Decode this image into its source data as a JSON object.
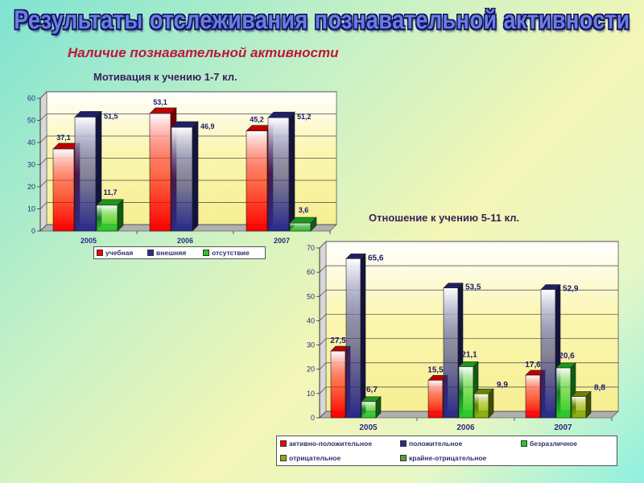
{
  "title": "Результаты отслеживания познавательной активности",
  "subtitle": "Наличие познавательной активности",
  "chart_data": [
    {
      "type": "bar",
      "title": "Мотивация к учению 1-7 кл.",
      "categories": [
        "2005",
        "2006",
        "2007"
      ],
      "series": [
        {
          "name": "учебная",
          "values": [
            37.1,
            53.1,
            45.2
          ],
          "labels": [
            "37,1",
            "53,1",
            "45,2"
          ],
          "color": "#ff0000"
        },
        {
          "name": "внешняя",
          "values": [
            51.5,
            46.9,
            51.2
          ],
          "labels": [
            "51,5",
            "46,9",
            "51,2"
          ],
          "color": "#2a2a8a"
        },
        {
          "name": "отсутствие",
          "values": [
            11.7,
            0,
            3.6
          ],
          "labels": [
            "11,7",
            "",
            "3,6"
          ],
          "color": "#22cc22"
        }
      ],
      "ylim": [
        0,
        60
      ],
      "yticks": [
        "0",
        "10",
        "20",
        "30",
        "40",
        "50",
        "60"
      ],
      "grid": true,
      "legend": "bottom"
    },
    {
      "type": "bar",
      "title": "Отношение к учению 5-11 кл.",
      "categories": [
        "2005",
        "2006",
        "2007"
      ],
      "series": [
        {
          "name": "активно-положительное",
          "values": [
            27.5,
            15.5,
            17.6
          ],
          "labels": [
            "27,5",
            "15,5",
            "17,6"
          ],
          "color": "#ff0000"
        },
        {
          "name": "положительное",
          "values": [
            65.6,
            53.5,
            52.9
          ],
          "labels": [
            "65,6",
            "53,5",
            "52,9"
          ],
          "color": "#2a2a8a"
        },
        {
          "name": "безразличное",
          "values": [
            6.7,
            21.1,
            20.6
          ],
          "labels": [
            "6,7",
            "21,1",
            "20,6"
          ],
          "color": "#22cc22"
        },
        {
          "name": "отрицательное",
          "values": [
            0,
            9.9,
            8.8
          ],
          "labels": [
            "",
            "9,9",
            "8,8"
          ],
          "color": "#8ab000"
        },
        {
          "name": "крайне-отрицательное",
          "values": [
            0,
            0,
            0
          ],
          "labels": [
            "",
            "",
            ""
          ],
          "color": "#5e9e38"
        }
      ],
      "ylim": [
        0,
        70
      ],
      "yticks": [
        "0",
        "10",
        "20",
        "30",
        "40",
        "50",
        "60",
        "70"
      ],
      "grid": true,
      "legend": "bottom"
    }
  ]
}
